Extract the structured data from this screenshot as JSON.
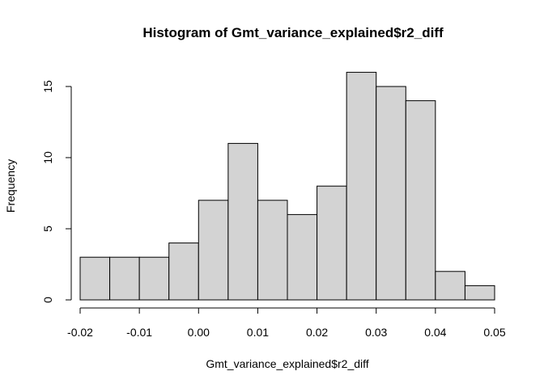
{
  "chart_data": {
    "type": "bar",
    "title": "Histogram of Gmt_variance_explained$r2_diff",
    "xlabel": "Gmt_variance_explained$r2_diff",
    "ylabel": "Frequency",
    "bins": [
      {
        "start": -0.02,
        "end": -0.015,
        "count": 3
      },
      {
        "start": -0.015,
        "end": -0.01,
        "count": 3
      },
      {
        "start": -0.01,
        "end": -0.005,
        "count": 3
      },
      {
        "start": -0.005,
        "end": 0.0,
        "count": 4
      },
      {
        "start": 0.0,
        "end": 0.005,
        "count": 7
      },
      {
        "start": 0.005,
        "end": 0.01,
        "count": 11
      },
      {
        "start": 0.01,
        "end": 0.015,
        "count": 7
      },
      {
        "start": 0.015,
        "end": 0.02,
        "count": 6
      },
      {
        "start": 0.02,
        "end": 0.025,
        "count": 8
      },
      {
        "start": 0.025,
        "end": 0.03,
        "count": 16
      },
      {
        "start": 0.03,
        "end": 0.035,
        "count": 15
      },
      {
        "start": 0.035,
        "end": 0.04,
        "count": 14
      },
      {
        "start": 0.04,
        "end": 0.045,
        "count": 2
      },
      {
        "start": 0.045,
        "end": 0.05,
        "count": 1
      }
    ],
    "xlim": [
      -0.02,
      0.05
    ],
    "ylim": [
      0,
      16
    ],
    "x_ticks": [
      {
        "value": -0.02,
        "label": "-0.02"
      },
      {
        "value": -0.01,
        "label": "-0.01"
      },
      {
        "value": 0.0,
        "label": "0.00"
      },
      {
        "value": 0.01,
        "label": "0.01"
      },
      {
        "value": 0.02,
        "label": "0.02"
      },
      {
        "value": 0.03,
        "label": "0.03"
      },
      {
        "value": 0.04,
        "label": "0.04"
      },
      {
        "value": 0.05,
        "label": "0.05"
      }
    ],
    "y_ticks": [
      {
        "value": 0,
        "label": "0"
      },
      {
        "value": 5,
        "label": "5"
      },
      {
        "value": 10,
        "label": "10"
      },
      {
        "value": 15,
        "label": "15"
      }
    ],
    "grid": false,
    "colors": {
      "bar_fill": "#d3d3d3",
      "bar_stroke": "#000000"
    }
  }
}
